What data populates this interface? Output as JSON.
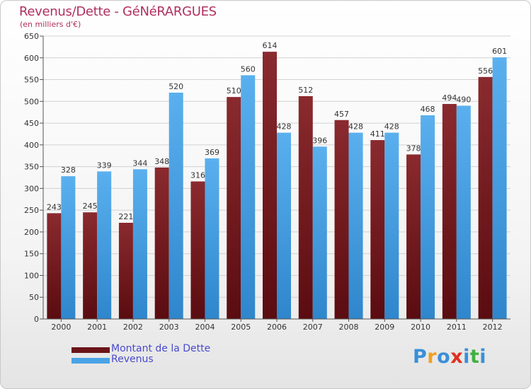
{
  "header": {
    "title": "Revenus/Dette - GéNéRARGUES",
    "subtitle": "(en milliers d'€)"
  },
  "brand": {
    "logo_text": "Proxiti",
    "letters": [
      "P",
      "r",
      "o",
      "x",
      "i",
      "t",
      "i"
    ],
    "letter_colors": [
      "#3a8fd8",
      "#f0a020",
      "#3a8fd8",
      "#e03020",
      "#3a8fd8",
      "#40b040",
      "#3a8fd8"
    ]
  },
  "chart_data": {
    "type": "bar",
    "title": "Revenus/Dette - GéNéRARGUES",
    "ylabel": "(en milliers d'€)",
    "xlabel": "",
    "ylim": [
      0,
      650
    ],
    "ytick_step": 50,
    "grid": true,
    "legend_position": "bottom-left",
    "categories": [
      "2000",
      "2001",
      "2002",
      "2003",
      "2004",
      "2005",
      "2006",
      "2007",
      "2008",
      "2009",
      "2010",
      "2011",
      "2012"
    ],
    "series": [
      {
        "name": "Montant de la Dette",
        "color": "#7a1e22",
        "color_dark": "#5a1014",
        "values": [
          243,
          245,
          221,
          348,
          316,
          510,
          614,
          512,
          457,
          411,
          378,
          494,
          556
        ]
      },
      {
        "name": "Revenus",
        "color": "#4aa3e6",
        "color_dark": "#2a7fc4",
        "values": [
          328,
          339,
          344,
          520,
          369,
          560,
          428,
          396,
          428,
          428,
          468,
          490,
          601
        ]
      }
    ]
  },
  "colors": {
    "title": "#b03060",
    "legend_text": "#4a4acc",
    "grid": "#d2d2d2",
    "label": "#333333"
  }
}
